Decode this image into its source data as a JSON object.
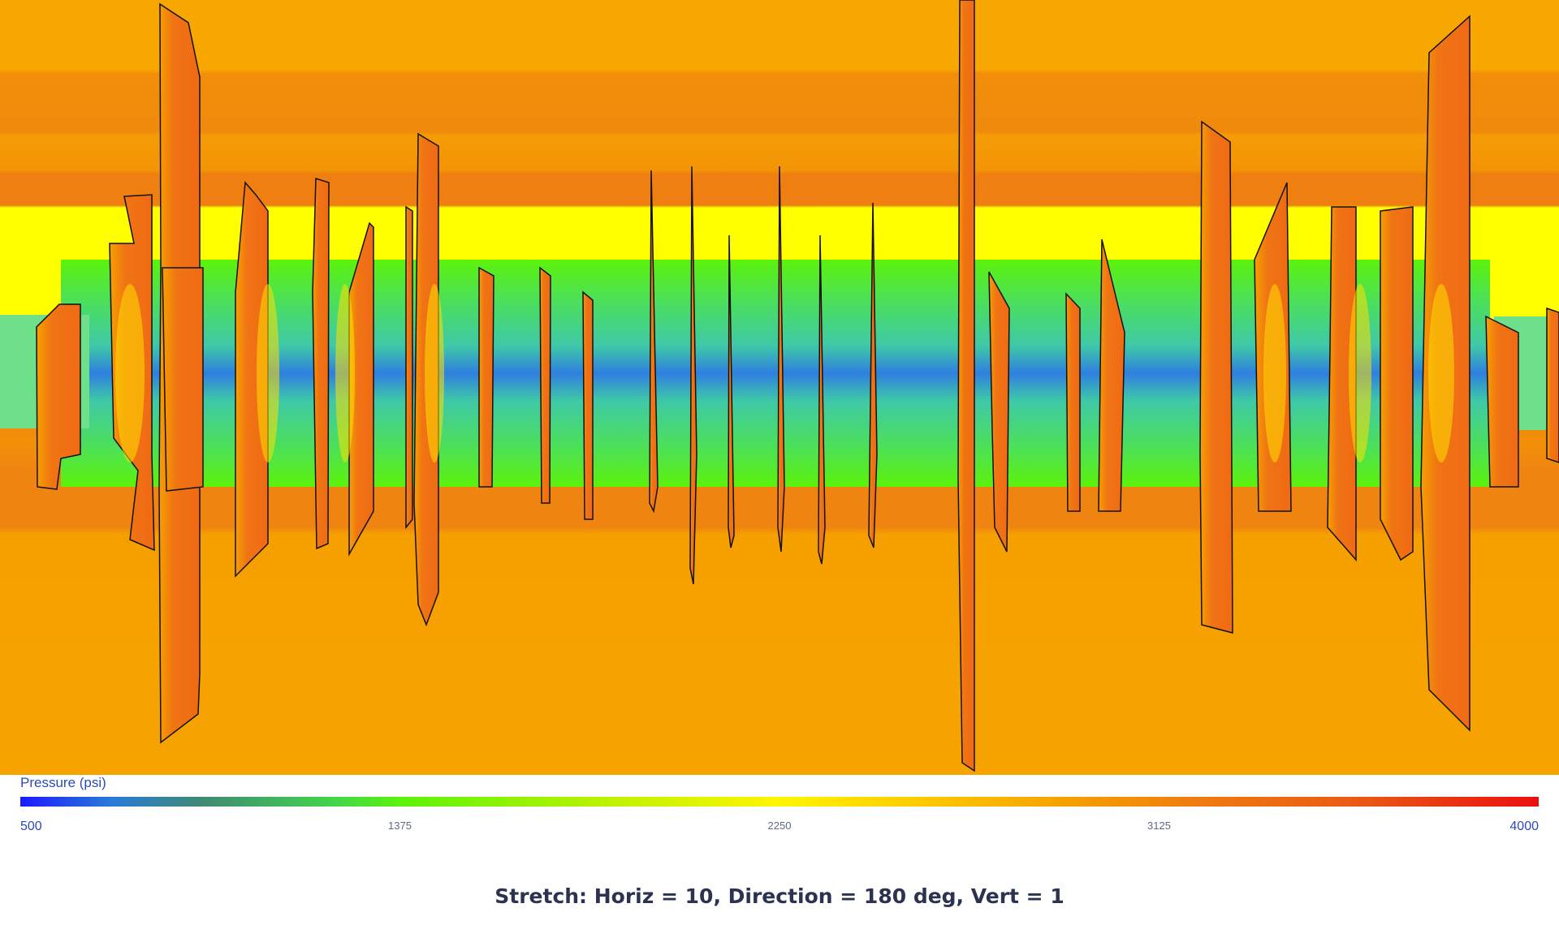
{
  "legend": {
    "title": "Pressure (psi)",
    "ticks": [
      "500",
      "1375",
      "2250",
      "3125",
      "4000"
    ],
    "colors": [
      "#1a1aff",
      "#44d84a",
      "#fff500",
      "#f6a400",
      "#ea1010"
    ]
  },
  "caption": "Stretch: Horiz = 10, Direction = 180 deg, Vert = 1",
  "scene": {
    "background_color": "#f5a400",
    "reservoir_band_color": "#5cf20a",
    "wellbore_color": "#2a6fe0",
    "fracture_color": "#f07414",
    "fracture_outline_color": "#111111"
  }
}
